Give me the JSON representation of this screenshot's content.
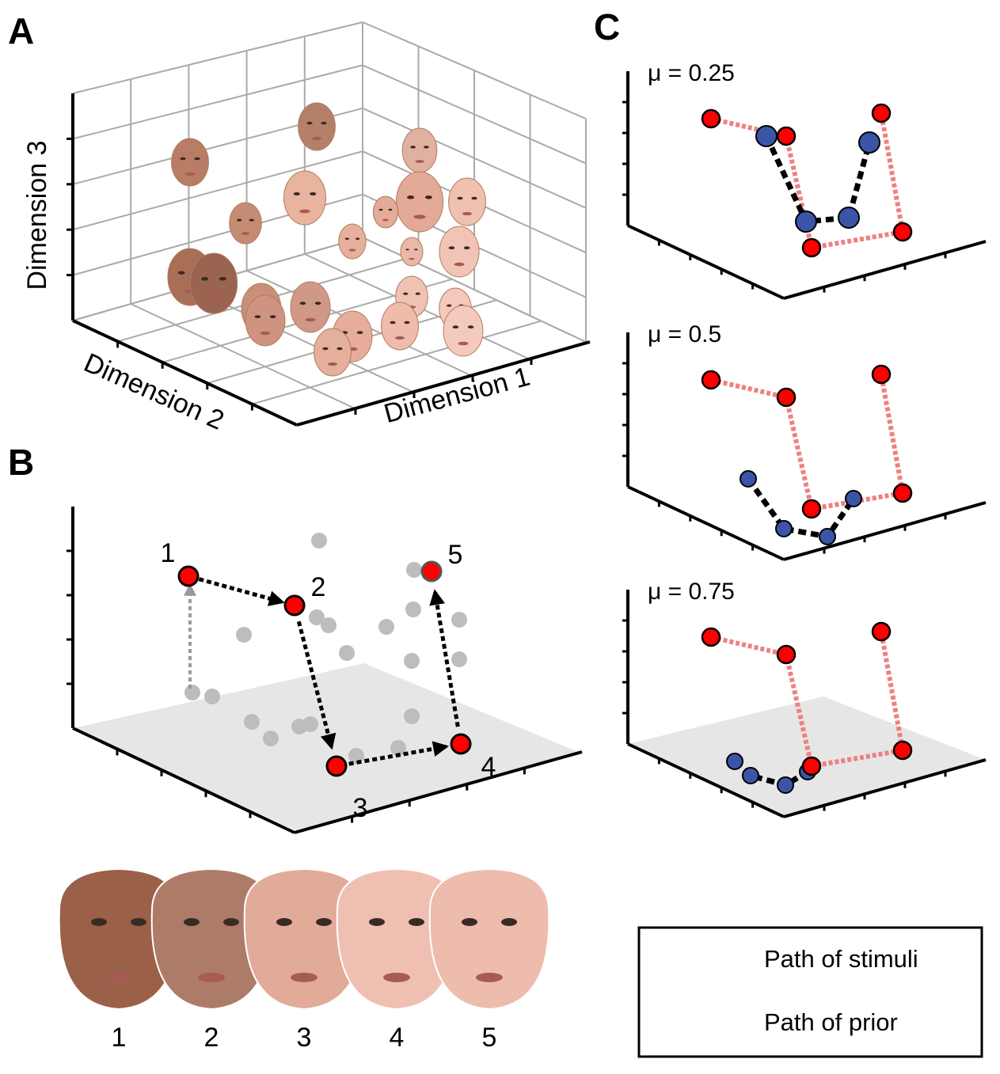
{
  "panels": {
    "a": {
      "label": "A",
      "axes": [
        "Dimension 3",
        "Dimension 2",
        "Dimension 1"
      ]
    },
    "b": {
      "label": "B",
      "points": [
        "1",
        "2",
        "3",
        "4",
        "5"
      ],
      "faces": [
        "1",
        "2",
        "3",
        "4",
        "5"
      ]
    },
    "c": {
      "label": "C",
      "plots": [
        "μ = 0.25",
        "μ = 0.5",
        "μ = 0.75"
      ],
      "legend": [
        "Path of stimuli",
        "Path of prior"
      ]
    }
  }
}
